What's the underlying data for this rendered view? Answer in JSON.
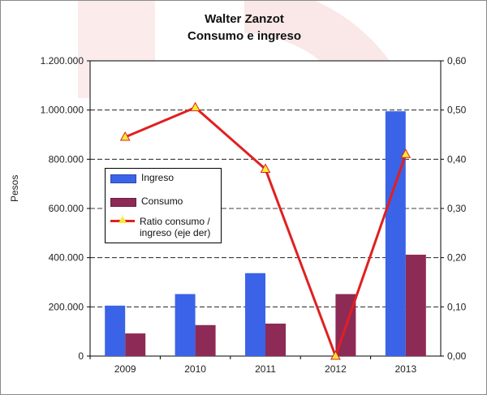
{
  "chart_data": {
    "type": "bar",
    "title": "Walter Zanzot",
    "subtitle": "Consumo e ingreso",
    "ylabel": "Pesos",
    "categories": [
      "2009",
      "2010",
      "2011",
      "2012",
      "2013"
    ],
    "ylim": [
      0,
      1200000
    ],
    "y2lim": [
      0,
      0.6
    ],
    "yticks": [
      "0",
      "200.000",
      "400.000",
      "600.000",
      "800.000",
      "1.000.000",
      "1.200.000"
    ],
    "y2ticks": [
      "0,00",
      "0,10",
      "0,20",
      "0,30",
      "0,40",
      "0,50",
      "0,60"
    ],
    "series": [
      {
        "name": "Ingreso",
        "type": "bar",
        "color": "#3b63e8",
        "values": [
          205000,
          252000,
          337000,
          0,
          995000
        ]
      },
      {
        "name": "Consumo",
        "type": "bar",
        "color": "#8e2a56",
        "values": [
          92000,
          126000,
          132000,
          252000,
          412000
        ]
      },
      {
        "name": "Ratio consumo / ingreso (eje der)",
        "type": "line",
        "axis": "right",
        "color": "#e02020",
        "marker_color": "#f7ec33",
        "values": [
          0.445,
          0.505,
          0.38,
          0.0,
          0.41
        ]
      }
    ],
    "grid": true,
    "legend_position": "left",
    "legend": [
      "Ingreso",
      "Consumo",
      "Ratio consumo /",
      "ingreso (eje der)"
    ]
  }
}
